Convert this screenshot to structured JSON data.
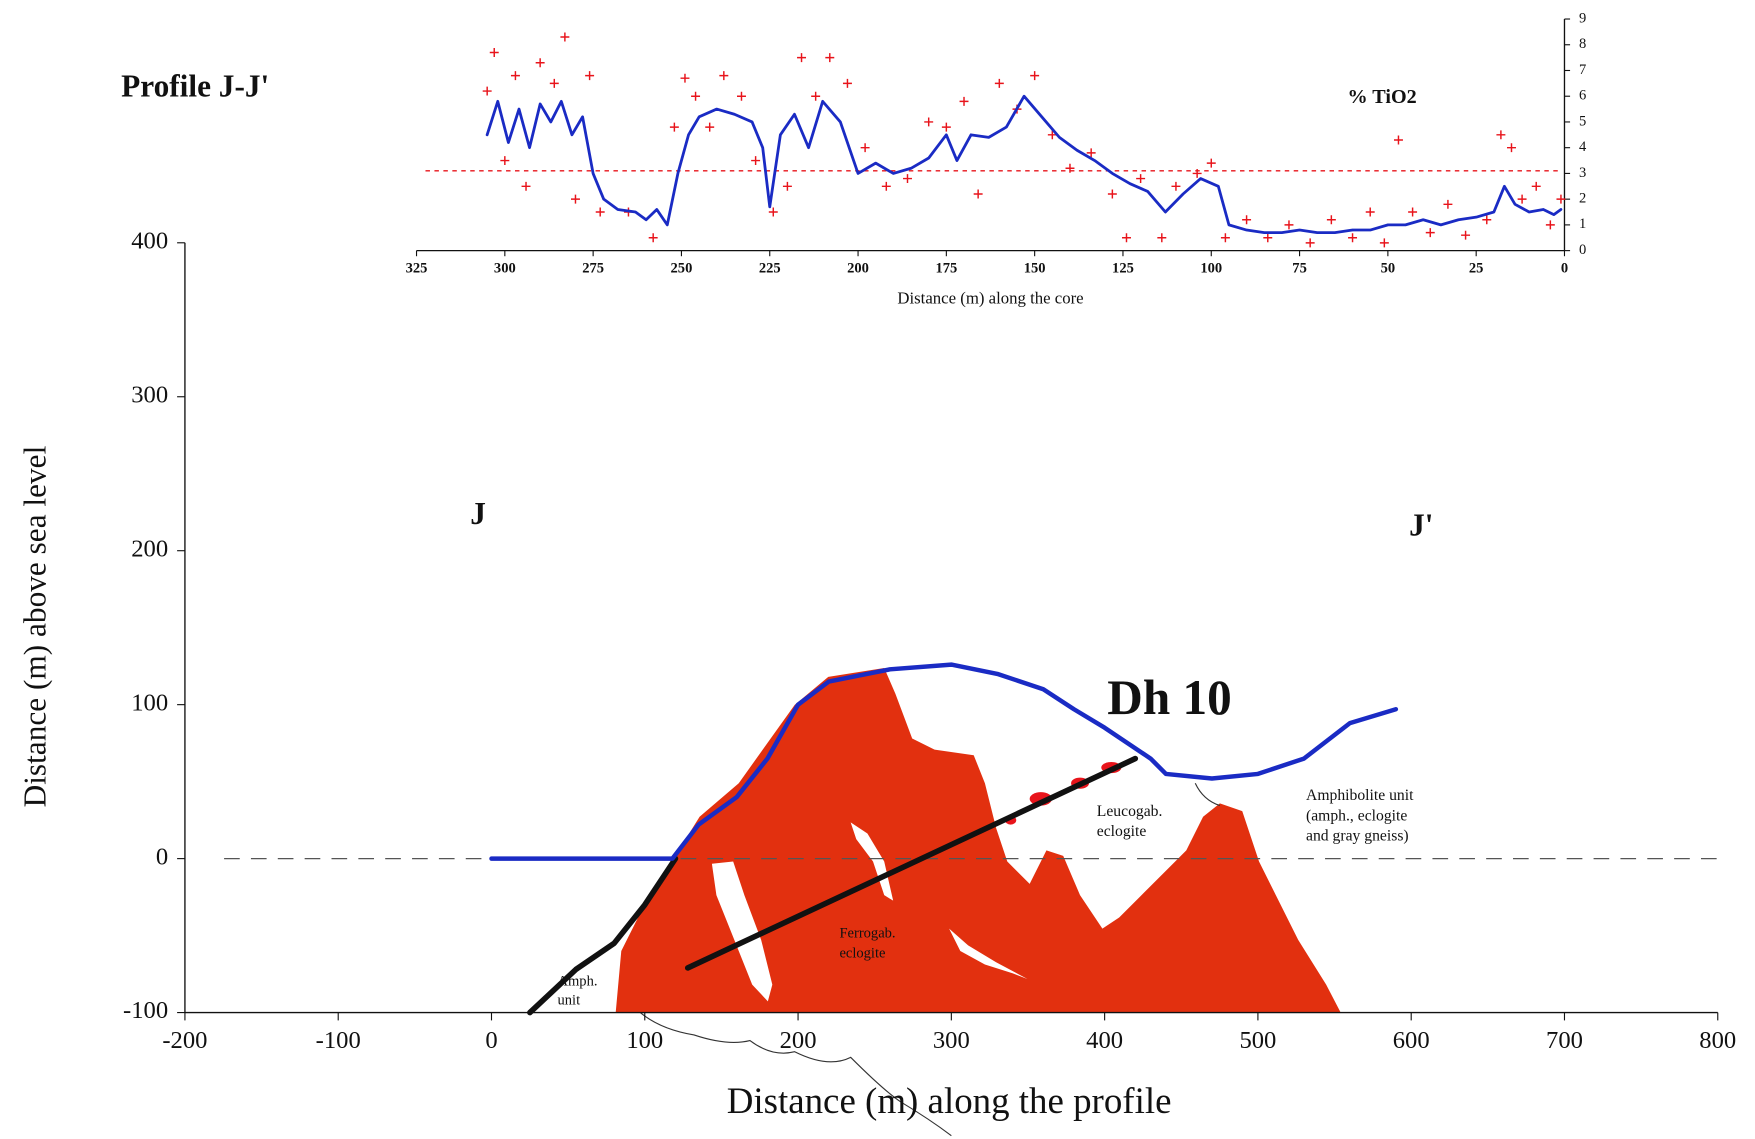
{
  "chart_data": [
    {
      "type": "line",
      "title": "% TiO2",
      "x_label": "Distance (m) along the core",
      "xlim": [
        325,
        0
      ],
      "ylim": [
        0,
        9
      ],
      "xticks": [
        325,
        300,
        275,
        250,
        225,
        200,
        175,
        150,
        125,
        100,
        75,
        50,
        25,
        0
      ],
      "yticks": [
        0,
        1,
        2,
        3,
        4,
        5,
        6,
        7,
        8,
        9
      ],
      "reference_line": 3.1,
      "series": [
        {
          "style": "marker",
          "color": "#e8141b",
          "x": [
            305,
            303,
            300,
            297,
            294,
            290,
            286,
            283,
            280,
            276,
            273,
            265,
            258,
            252,
            249,
            246,
            242,
            238,
            233,
            229,
            224,
            220,
            216,
            212,
            208,
            203,
            198,
            192,
            186,
            180,
            175,
            170,
            166,
            160,
            155,
            150,
            145,
            140,
            134,
            128,
            124,
            120,
            114,
            110,
            104,
            100,
            96,
            90,
            84,
            78,
            72,
            66,
            60,
            55,
            51,
            47,
            43,
            38,
            33,
            28,
            22,
            18,
            15,
            12,
            8,
            4,
            1
          ],
          "values": [
            6.2,
            7.7,
            3.5,
            6.8,
            2.5,
            7.3,
            6.5,
            8.3,
            2.0,
            6.8,
            1.5,
            1.5,
            0.5,
            4.8,
            6.7,
            6.0,
            4.8,
            6.8,
            6.0,
            3.5,
            1.5,
            2.5,
            7.5,
            6.0,
            7.5,
            6.5,
            4.0,
            2.5,
            2.8,
            5.0,
            4.8,
            5.8,
            2.2,
            6.5,
            5.5,
            6.8,
            4.5,
            3.2,
            3.8,
            2.2,
            0.5,
            2.8,
            0.5,
            2.5,
            3.0,
            3.4,
            0.5,
            1.2,
            0.5,
            1.0,
            0.3,
            1.2,
            0.5,
            1.5,
            0.3,
            4.3,
            1.5,
            0.7,
            1.8,
            0.6,
            1.2,
            4.5,
            4.0,
            2.0,
            2.5,
            1.0,
            2.0
          ]
        },
        {
          "style": "line",
          "color": "#1a2bc4",
          "x": [
            305,
            302,
            299,
            296,
            293,
            290,
            287,
            284,
            281,
            278,
            275,
            272,
            268,
            263,
            260,
            257,
            254,
            251,
            248,
            245,
            240,
            235,
            230,
            227,
            225,
            222,
            218,
            214,
            210,
            205,
            200,
            195,
            190,
            185,
            180,
            175,
            172,
            168,
            163,
            158,
            153,
            148,
            143,
            138,
            133,
            128,
            123,
            118,
            113,
            108,
            103,
            98,
            95,
            90,
            85,
            80,
            75,
            70,
            65,
            60,
            55,
            50,
            45,
            40,
            35,
            30,
            25,
            20,
            17,
            14,
            10,
            6,
            3,
            1
          ],
          "values": [
            4.5,
            5.8,
            4.2,
            5.5,
            4.0,
            5.7,
            5.0,
            5.8,
            4.5,
            5.2,
            3.0,
            2.0,
            1.6,
            1.5,
            1.2,
            1.6,
            1.0,
            3.0,
            4.5,
            5.2,
            5.5,
            5.3,
            5.0,
            4.0,
            1.7,
            4.5,
            5.3,
            4.0,
            5.8,
            5.0,
            3.0,
            3.4,
            3.0,
            3.2,
            3.6,
            4.5,
            3.5,
            4.5,
            4.4,
            4.8,
            6.0,
            5.2,
            4.4,
            3.9,
            3.5,
            3.0,
            2.6,
            2.3,
            1.5,
            2.2,
            2.8,
            2.5,
            1.0,
            0.8,
            0.7,
            0.7,
            0.8,
            0.7,
            0.7,
            0.8,
            0.8,
            1.0,
            1.0,
            1.2,
            1.0,
            1.2,
            1.3,
            1.5,
            2.5,
            1.8,
            1.5,
            1.6,
            1.4,
            1.6
          ]
        }
      ]
    },
    {
      "type": "line",
      "title": "Profile J-J'",
      "x_label": "Distance (m) along the profile",
      "y_label": "Distance (m) above sea level",
      "xlim": [
        -200,
        800
      ],
      "ylim": [
        -100,
        400
      ],
      "xticks": [
        -200,
        -100,
        0,
        100,
        200,
        300,
        400,
        500,
        600,
        700,
        800
      ],
      "yticks": [
        -100,
        0,
        100,
        200,
        300,
        400
      ],
      "reference_line": 0,
      "annotations": {
        "left_end": "J",
        "right_end": "J'",
        "drill_hole": "Dh 10",
        "leucogabbro": [
          "Leucogab.",
          "eclogite"
        ],
        "amphibolite": [
          "Amphibolite unit",
          "(amph., eclogite",
          "and gray gneiss)"
        ],
        "ferrogabbro": [
          "Ferrogab.",
          "eclogite"
        ],
        "amph_unit": [
          "Amph.",
          "unit"
        ]
      },
      "series": [
        {
          "style": "line",
          "color": "#111111",
          "width": 5,
          "x": [
            25,
            55,
            80,
            100,
            120
          ],
          "values": [
            -100,
            -72,
            -55,
            -30,
            0
          ]
        },
        {
          "style": "line",
          "color": "#1a2bc4",
          "width": 4,
          "x": [
            0,
            118,
            135,
            160,
            180,
            200,
            220,
            260,
            300,
            330,
            360,
            380,
            400,
            430,
            440,
            470,
            500,
            530,
            560,
            590
          ],
          "values": [
            0,
            0,
            22,
            40,
            65,
            100,
            115,
            123,
            126,
            120,
            110,
            97,
            85,
            65,
            55,
            52,
            55,
            65,
            88,
            97
          ]
        },
        {
          "style": "line",
          "color": "#111111",
          "width": 5,
          "x": [
            128,
            420
          ],
          "values": [
            -71,
            65
          ]
        }
      ]
    }
  ]
}
